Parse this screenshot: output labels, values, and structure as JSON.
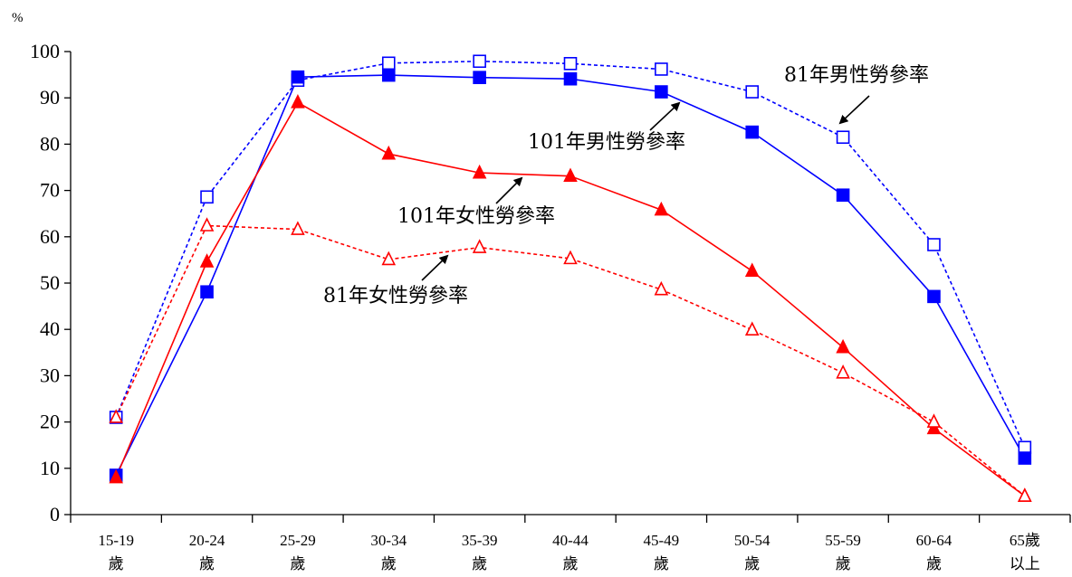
{
  "chart_data": {
    "type": "line",
    "unit_label": "%",
    "ylim": [
      0,
      100
    ],
    "yticks": [
      0,
      10,
      20,
      30,
      40,
      50,
      60,
      70,
      80,
      90,
      100
    ],
    "categories": [
      [
        "15-19",
        "歲"
      ],
      [
        "20-24",
        "歲"
      ],
      [
        "25-29",
        "歲"
      ],
      [
        "30-34",
        "歲"
      ],
      [
        "35-39",
        "歲"
      ],
      [
        "40-44",
        "歲"
      ],
      [
        "45-49",
        "歲"
      ],
      [
        "50-54",
        "歲"
      ],
      [
        "55-59",
        "歲"
      ],
      [
        "60-64",
        "歲"
      ],
      [
        "65歲",
        "以上"
      ]
    ],
    "grid": false,
    "series": [
      {
        "name": "81年男性勞參率",
        "color": "#0000ff",
        "line_style": "dashed",
        "marker": "square-open",
        "values": [
          21.0,
          68.6,
          93.8,
          97.5,
          97.9,
          97.4,
          96.2,
          91.3,
          81.5,
          58.3,
          14.5
        ]
      },
      {
        "name": "101年男性勞參率",
        "color": "#0000ff",
        "line_style": "solid",
        "marker": "square-filled",
        "values": [
          8.5,
          48.1,
          94.5,
          94.9,
          94.4,
          94.1,
          91.3,
          82.6,
          69.0,
          47.1,
          12.2
        ]
      },
      {
        "name": "101年女性勞參率",
        "color": "#ff0000",
        "line_style": "solid",
        "marker": "triangle-filled",
        "values": [
          8.0,
          54.6,
          89.0,
          77.9,
          73.8,
          73.1,
          65.8,
          52.6,
          36.1,
          18.6,
          4.0
        ]
      },
      {
        "name": "81年女性勞參率",
        "color": "#ff0000",
        "line_style": "dashed",
        "marker": "triangle-open",
        "values": [
          21.0,
          62.4,
          61.6,
          55.1,
          57.7,
          55.3,
          48.6,
          39.9,
          30.6,
          20.0,
          4.0
        ]
      }
    ]
  }
}
